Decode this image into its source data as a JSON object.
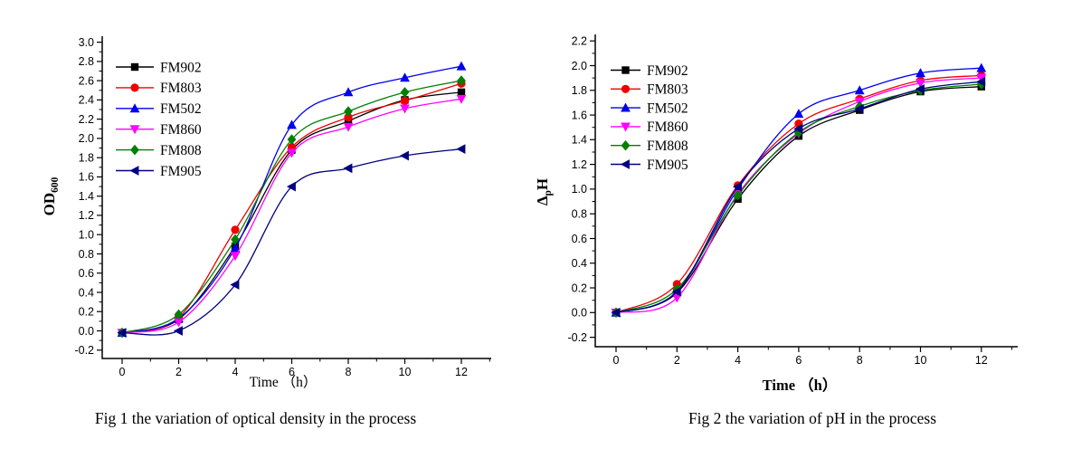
{
  "figure": {
    "background": "#ffffff"
  },
  "chart_data": [
    {
      "id": "fig1",
      "type": "line",
      "title": "Fig 1 the variation of optical density in the process",
      "xlabel": "Time （h）",
      "xlabel_bold": false,
      "ylabel": {
        "pre": "OD",
        "sub": "600",
        "post": ""
      },
      "x": [
        0,
        2,
        4,
        6,
        8,
        10,
        12
      ],
      "xticks": [
        "0",
        "2",
        "4",
        "6",
        "8",
        "10",
        "12"
      ],
      "yticks": [
        "-0.2",
        "0.0",
        "0.2",
        "0.4",
        "0.6",
        "0.8",
        "1.0",
        "1.2",
        "1.4",
        "1.6",
        "1.8",
        "2.0",
        "2.2",
        "2.4",
        "2.6",
        "2.8",
        "3.0"
      ],
      "xlim": [
        -0.7,
        13.06
      ],
      "ylim": [
        -0.29,
        3.06
      ],
      "major_x_step": 2,
      "major_y_step": 0.2,
      "minor_x_step": 1,
      "minor_y_step": 0.1,
      "grid": false,
      "legend_position": "top-left-inside",
      "series": [
        {
          "name": "FM902",
          "color": "#000000",
          "marker": "square",
          "values": [
            -0.02,
            0.12,
            0.88,
            1.88,
            2.18,
            2.4,
            2.48
          ]
        },
        {
          "name": "FM803",
          "color": "#ee0000",
          "marker": "circle",
          "values": [
            -0.02,
            0.14,
            1.05,
            1.91,
            2.22,
            2.39,
            2.57
          ]
        },
        {
          "name": "FM502",
          "color": "#0000ee",
          "marker": "triangle-up",
          "values": [
            -0.02,
            0.13,
            0.86,
            2.14,
            2.48,
            2.63,
            2.75
          ]
        },
        {
          "name": "FM860",
          "color": "#ff00ff",
          "marker": "triangle-down",
          "values": [
            -0.02,
            0.09,
            0.78,
            1.85,
            2.12,
            2.31,
            2.41
          ]
        },
        {
          "name": "FM808",
          "color": "#008000",
          "marker": "diamond",
          "values": [
            -0.02,
            0.17,
            0.95,
            1.99,
            2.28,
            2.48,
            2.6
          ]
        },
        {
          "name": "FM905",
          "color": "#000080",
          "marker": "triangle-left",
          "values": [
            -0.02,
            0.0,
            0.48,
            1.5,
            1.69,
            1.82,
            1.89
          ]
        }
      ]
    },
    {
      "id": "fig2",
      "type": "line",
      "title": "Fig 2 the variation of pH in the process",
      "xlabel": "Time （h）",
      "xlabel_bold": true,
      "ylabel": {
        "pre": "Δ",
        "sub": "p",
        "post": "H"
      },
      "x": [
        0,
        2,
        4,
        6,
        8,
        10,
        12
      ],
      "xticks": [
        "0",
        "2",
        "4",
        "6",
        "8",
        "10",
        "12"
      ],
      "yticks": [
        "-0.2",
        "0.0",
        "0.2",
        "0.4",
        "0.6",
        "0.8",
        "1.0",
        "1.2",
        "1.4",
        "1.6",
        "1.8",
        "2.0",
        "2.2"
      ],
      "xlim": [
        -0.68,
        13.2
      ],
      "ylim": [
        -0.28,
        2.25
      ],
      "major_x_step": 2,
      "major_y_step": 0.2,
      "minor_x_step": 1,
      "minor_y_step": 0.1,
      "grid": false,
      "legend_position": "top-left-inside",
      "series": [
        {
          "name": "FM902",
          "color": "#000000",
          "marker": "square",
          "values": [
            0.0,
            0.16,
            0.92,
            1.43,
            1.64,
            1.79,
            1.83
          ]
        },
        {
          "name": "FM803",
          "color": "#ee0000",
          "marker": "circle",
          "values": [
            0.0,
            0.23,
            1.03,
            1.53,
            1.73,
            1.88,
            1.92
          ]
        },
        {
          "name": "FM502",
          "color": "#0000ee",
          "marker": "triangle-up",
          "values": [
            0.0,
            0.17,
            1.0,
            1.61,
            1.8,
            1.94,
            1.98
          ]
        },
        {
          "name": "FM860",
          "color": "#ff00ff",
          "marker": "triangle-down",
          "values": [
            0.0,
            0.12,
            0.96,
            1.45,
            1.71,
            1.86,
            1.9
          ]
        },
        {
          "name": "FM808",
          "color": "#008000",
          "marker": "diamond",
          "values": [
            0.0,
            0.19,
            0.95,
            1.46,
            1.67,
            1.8,
            1.85
          ]
        },
        {
          "name": "FM905",
          "color": "#000080",
          "marker": "triangle-left",
          "values": [
            0.0,
            0.17,
            1.02,
            1.49,
            1.65,
            1.81,
            1.87
          ]
        }
      ]
    }
  ]
}
